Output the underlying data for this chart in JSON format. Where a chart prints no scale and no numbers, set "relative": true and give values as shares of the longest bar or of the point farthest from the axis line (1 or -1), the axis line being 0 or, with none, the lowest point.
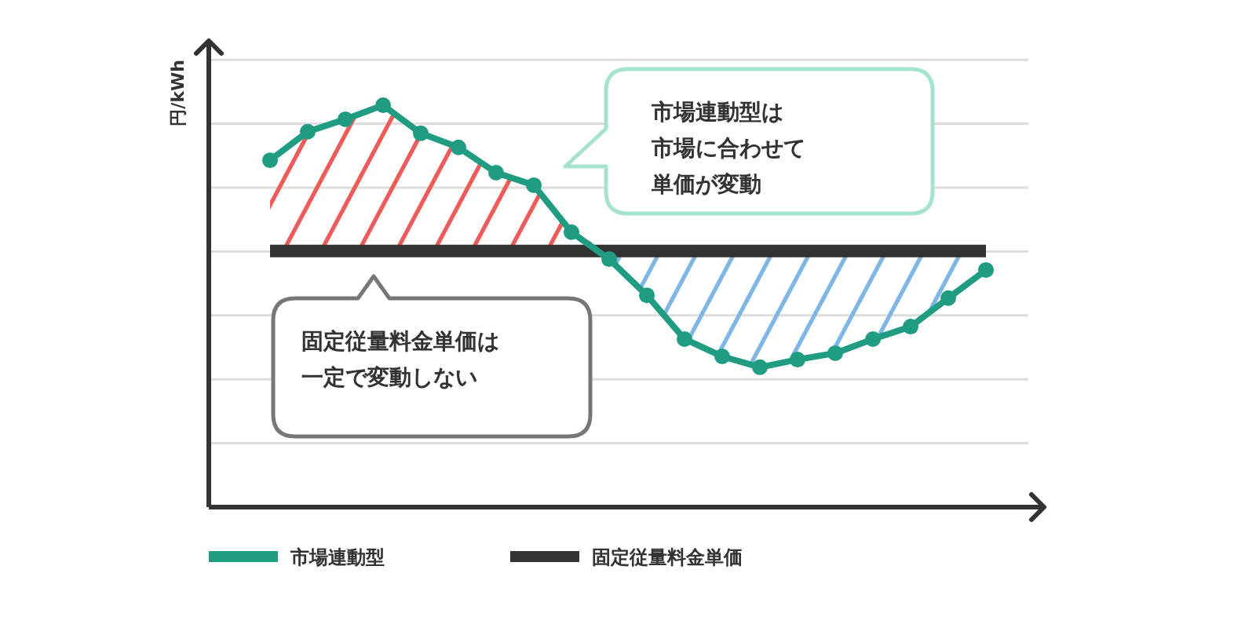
{
  "chart_data": {
    "type": "line",
    "relative": true,
    "ylabel": "円/kWh",
    "grid": true,
    "legend": "bottom",
    "line_style": "solid",
    "categories": [
      null,
      null,
      null,
      null,
      null,
      null,
      null,
      null,
      null,
      null,
      null,
      null,
      null,
      null,
      null,
      null,
      null,
      null,
      null,
      null
    ],
    "series": [
      {
        "name": "市場連動型",
        "color": "#1f9c82",
        "marker": "circle",
        "values": [
          0.863,
          0.934,
          0.965,
          1,
          0.93,
          0.895,
          0.832,
          0.801,
          0.684,
          0.617,
          0.527,
          0.418,
          0.375,
          0.348,
          0.367,
          0.383,
          0.418,
          0.449,
          0.52,
          0.59
        ]
      },
      {
        "name": "固定従量料金単価",
        "color": "#333333",
        "marker": "none",
        "values": [
          0.637,
          0.637,
          0.637,
          0.637,
          0.637,
          0.637,
          0.637,
          0.637,
          0.637,
          0.637,
          0.637,
          0.637,
          0.637,
          0.637,
          0.637,
          0.637,
          0.637,
          0.637,
          0.637,
          0.637
        ]
      }
    ],
    "annotations": [
      "市場連動型は市場に合わせて単価が変動",
      "固定従量料金単価は一定で変動しない"
    ]
  }
}
